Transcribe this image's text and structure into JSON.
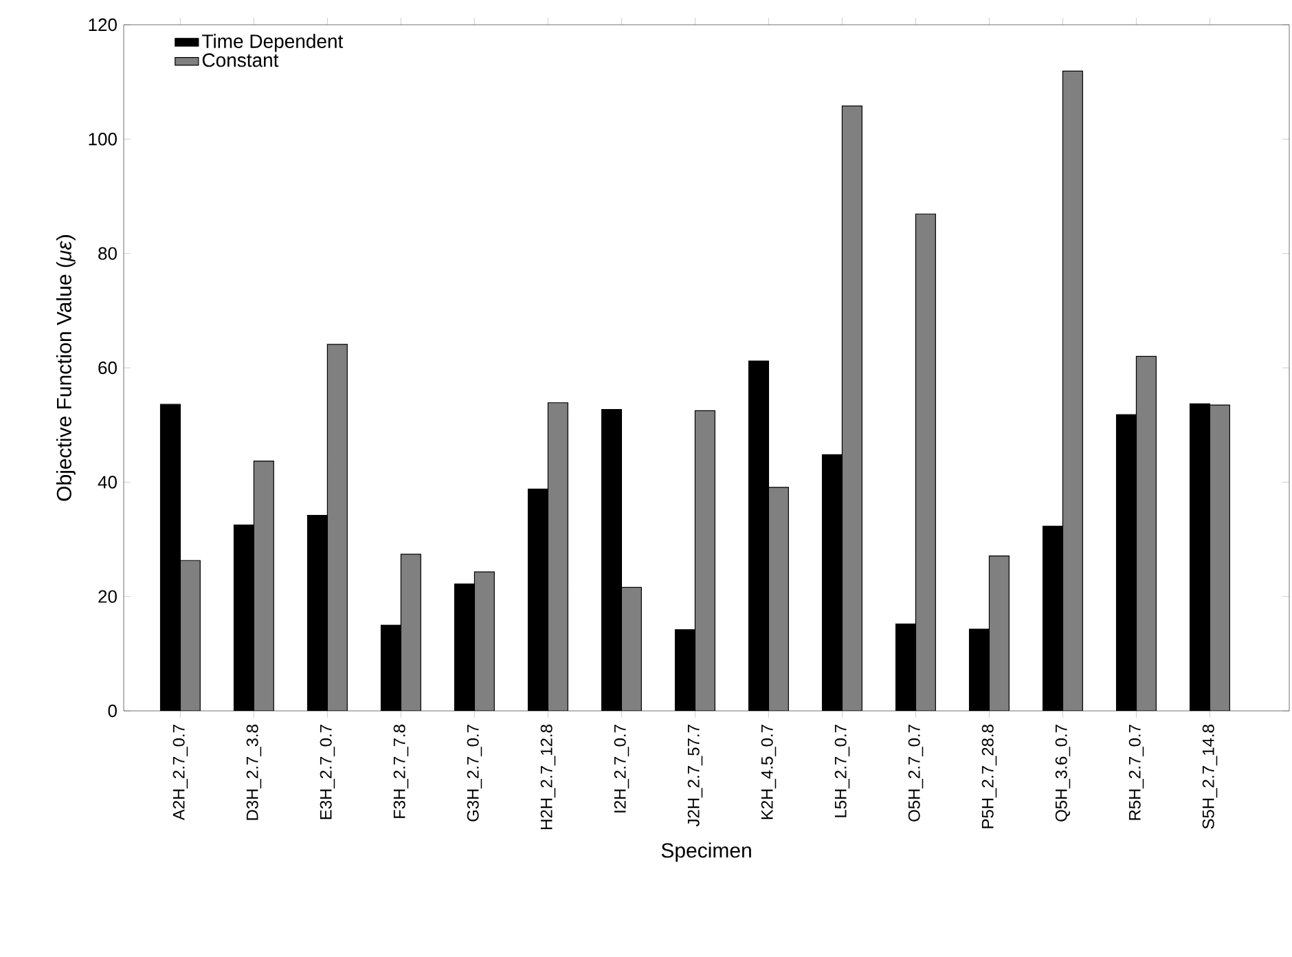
{
  "chart_data": {
    "type": "bar",
    "xlabel": "Specimen",
    "ylabel": "Objective Function Value (*με*)",
    "categories": [
      "A2H_2.7_0.7",
      "D3H_2.7_3.8",
      "E3H_2.7_0.7",
      "F3H_2.7_7.8",
      "G3H_2.7_0.7",
      "H2H_2.7_12.8",
      "I2H_2.7_0.7",
      "J2H_2.7_57.7",
      "K2H_4.5_0.7",
      "L5H_2.7_0.7",
      "O5H_2.7_0.7",
      "P5H_2.7_28.8",
      "Q5H_3.6_0.7",
      "R5H_2.7_0.7",
      "S5H_2.7_14.8"
    ],
    "series": [
      {
        "name": "Time Dependent",
        "color": "#000000",
        "values": [
          53.6,
          32.5,
          34.2,
          15,
          22.2,
          38.8,
          52.7,
          14.2,
          61.2,
          44.8,
          15.2,
          14.3,
          32.3,
          51.8,
          53.7
        ]
      },
      {
        "name": "Constant",
        "color": "#808080",
        "values": [
          26.3,
          43.7,
          64.1,
          27.4,
          24.3,
          53.9,
          21.6,
          52.5,
          39.1,
          105.8,
          86.9,
          27.1,
          111.9,
          62,
          53.5
        ]
      }
    ],
    "ylim": [
      0,
      120
    ],
    "yticks": [
      0,
      20,
      40,
      60,
      80,
      100,
      120
    ],
    "grid": false,
    "legend": "top left"
  }
}
